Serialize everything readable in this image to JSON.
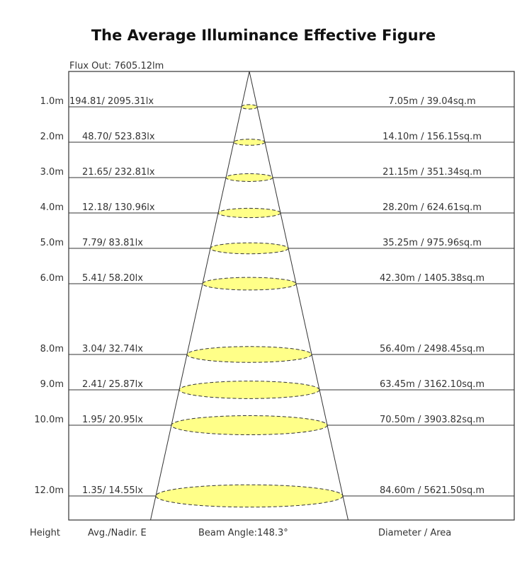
{
  "title": "The Average Illuminance Effective Figure",
  "flux_out": "Flux Out: 7605.12lm",
  "footer": {
    "height": "Height",
    "avg_nadir": "Avg./Nadir. E",
    "beam_angle": "Beam Angle:148.3°",
    "diameter_area": "Diameter / Area"
  },
  "colors": {
    "spot_fill": "#ffff88",
    "line": "#333333"
  },
  "rows": [
    {
      "height": 1,
      "height_label": "1.0m",
      "illuminance": "194.81/ 2095.31lx",
      "diameter_area": "7.05m / 39.04sq.m"
    },
    {
      "height": 2,
      "height_label": "2.0m",
      "illuminance": "48.70/ 523.83lx",
      "diameter_area": "14.10m / 156.15sq.m"
    },
    {
      "height": 3,
      "height_label": "3.0m",
      "illuminance": "21.65/ 232.81lx",
      "diameter_area": "21.15m / 351.34sq.m"
    },
    {
      "height": 4,
      "height_label": "4.0m",
      "illuminance": "12.18/ 130.96lx",
      "diameter_area": "28.20m / 624.61sq.m"
    },
    {
      "height": 5,
      "height_label": "5.0m",
      "illuminance": "7.79/ 83.81lx",
      "diameter_area": "35.25m / 975.96sq.m"
    },
    {
      "height": 6,
      "height_label": "6.0m",
      "illuminance": "5.41/ 58.20lx",
      "diameter_area": "42.30m / 1405.38sq.m"
    },
    {
      "height": 8,
      "height_label": "8.0m",
      "illuminance": "3.04/ 32.74lx",
      "diameter_area": "56.40m / 2498.45sq.m"
    },
    {
      "height": 9,
      "height_label": "9.0m",
      "illuminance": "2.41/ 25.87lx",
      "diameter_area": "63.45m / 3162.10sq.m"
    },
    {
      "height": 10,
      "height_label": "10.0m",
      "illuminance": "1.95/ 20.95lx",
      "diameter_area": "70.50m / 3903.82sq.m"
    },
    {
      "height": 12,
      "height_label": "12.0m",
      "illuminance": "1.35/ 14.55lx",
      "diameter_area": "84.60m / 5621.50sq.m"
    }
  ]
}
